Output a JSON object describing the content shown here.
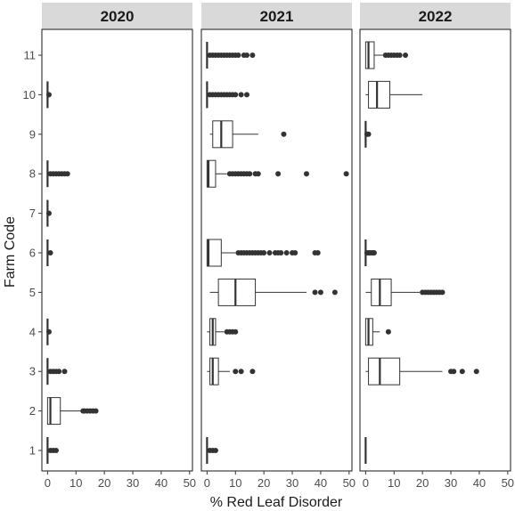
{
  "chart_data": {
    "type": "boxplot",
    "orientation": "horizontal",
    "facets": [
      "2020",
      "2021",
      "2022"
    ],
    "xlabel": "% Red Leaf Disorder",
    "ylabel": "Farm Code",
    "xlim": [
      -2,
      51
    ],
    "x_ticks": [
      0,
      10,
      20,
      30,
      40,
      50
    ],
    "y_categories": [
      "1",
      "2",
      "3",
      "4",
      "5",
      "6",
      "7",
      "8",
      "9",
      "10",
      "11"
    ],
    "colors": {
      "strip": "#d9d9d9",
      "box_fill": "#ffffff",
      "stroke": "#333333",
      "points": "#333333"
    },
    "panels": [
      {
        "facet": "2020",
        "boxes": [
          {
            "farm": "1",
            "lw": 0,
            "q1": 0,
            "med": 0,
            "q3": 0,
            "uw": 0,
            "outliers": [
              1,
              2,
              3
            ]
          },
          {
            "farm": "2",
            "lw": 0,
            "q1": 0,
            "med": 1,
            "q3": 4.5,
            "uw": 12,
            "outliers": [
              12.5,
              13,
              14,
              15,
              16,
              17
            ]
          },
          {
            "farm": "3",
            "lw": 0,
            "q1": 0,
            "med": 0,
            "q3": 0,
            "uw": 0,
            "outliers": [
              1,
              2,
              3,
              4,
              6
            ]
          },
          {
            "farm": "4",
            "lw": 0,
            "q1": 0,
            "med": 0,
            "q3": 0,
            "uw": 0,
            "outliers": [
              0.5
            ]
          },
          {
            "farm": "6",
            "lw": 0,
            "q1": 0,
            "med": 0,
            "q3": 0,
            "uw": 0,
            "outliers": [
              1
            ]
          },
          {
            "farm": "7",
            "lw": 0,
            "q1": 0,
            "med": 0,
            "q3": 0,
            "uw": 0,
            "outliers": [
              0.5
            ]
          },
          {
            "farm": "8",
            "lw": 0,
            "q1": 0,
            "med": 0,
            "q3": 0,
            "uw": 0,
            "outliers": [
              1,
              2,
              3,
              4,
              5,
              6,
              7
            ]
          },
          {
            "farm": "10",
            "lw": 0,
            "q1": 0,
            "med": 0,
            "q3": 0,
            "uw": 0,
            "outliers": [
              0.5
            ]
          }
        ]
      },
      {
        "facet": "2021",
        "boxes": [
          {
            "farm": "1",
            "lw": 0,
            "q1": 0,
            "med": 0,
            "q3": 0,
            "uw": 0,
            "outliers": [
              1,
              2,
              3
            ]
          },
          {
            "farm": "3",
            "lw": 0,
            "q1": 1,
            "med": 2,
            "q3": 4,
            "uw": 8,
            "outliers": [
              10,
              12,
              16
            ]
          },
          {
            "farm": "4",
            "lw": 0,
            "q1": 1,
            "med": 2,
            "q3": 3,
            "uw": 6,
            "outliers": [
              7,
              8,
              9,
              10
            ]
          },
          {
            "farm": "5",
            "lw": 1,
            "q1": 4,
            "med": 10,
            "q3": 17,
            "uw": 35,
            "outliers": [
              38,
              40,
              45
            ]
          },
          {
            "farm": "6",
            "lw": 0,
            "q1": 0,
            "med": 0.5,
            "q3": 5,
            "uw": 10,
            "outliers": [
              11,
              12,
              13,
              14,
              15,
              16,
              17,
              18,
              19,
              20,
              22,
              24,
              25,
              26,
              28,
              30,
              31,
              38,
              39
            ]
          },
          {
            "farm": "8",
            "lw": 0,
            "q1": 0,
            "med": 0.5,
            "q3": 3,
            "uw": 7,
            "outliers": [
              8,
              9,
              10,
              11,
              12,
              13,
              14,
              15,
              17,
              18,
              25,
              35,
              49
            ]
          },
          {
            "farm": "9",
            "lw": 1,
            "q1": 2,
            "med": 5,
            "q3": 9,
            "uw": 18,
            "outliers": [
              27
            ]
          },
          {
            "farm": "10",
            "lw": 0,
            "q1": 0,
            "med": 0,
            "q3": 0,
            "uw": 0,
            "outliers": [
              1,
              2,
              3,
              4,
              5,
              6,
              7,
              8,
              9,
              10,
              12,
              14
            ]
          },
          {
            "farm": "11",
            "lw": 0,
            "q1": 0,
            "med": 0,
            "q3": 0,
            "uw": 0,
            "outliers": [
              1,
              2,
              3,
              4,
              5,
              6,
              7,
              8,
              9,
              10,
              11,
              13,
              14,
              16
            ]
          }
        ]
      },
      {
        "facet": "2022",
        "boxes": [
          {
            "farm": "1",
            "lw": 0,
            "q1": 0,
            "med": 0,
            "q3": 0,
            "uw": 0,
            "outliers": []
          },
          {
            "farm": "3",
            "lw": 0,
            "q1": 1,
            "med": 5,
            "q3": 12,
            "uw": 27,
            "outliers": [
              30,
              31,
              34,
              39
            ]
          },
          {
            "farm": "4",
            "lw": 0,
            "q1": 0,
            "med": 1,
            "q3": 2.5,
            "uw": 5,
            "outliers": [
              8
            ]
          },
          {
            "farm": "5",
            "lw": 0,
            "q1": 2,
            "med": 5,
            "q3": 9,
            "uw": 19,
            "outliers": [
              20,
              21,
              22,
              23,
              24,
              25,
              26,
              27
            ]
          },
          {
            "farm": "6",
            "lw": 0,
            "q1": 0,
            "med": 0,
            "q3": 0,
            "uw": 0,
            "outliers": [
              0.5,
              1,
              1.5,
              2,
              2.5,
              3
            ]
          },
          {
            "farm": "9",
            "lw": 0,
            "q1": 0,
            "med": 0,
            "q3": 0,
            "uw": 0,
            "outliers": [
              0.5,
              1
            ]
          },
          {
            "farm": "10",
            "lw": 0,
            "q1": 1,
            "med": 4,
            "q3": 8.5,
            "uw": 20,
            "outliers": []
          },
          {
            "farm": "11",
            "lw": 0,
            "q1": 0,
            "med": 1,
            "q3": 3,
            "uw": 6,
            "outliers": [
              7,
              8,
              9,
              10,
              11,
              12,
              14
            ]
          }
        ]
      }
    ]
  }
}
